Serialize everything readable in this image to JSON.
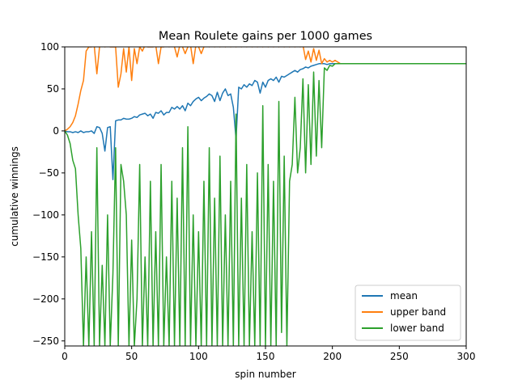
{
  "chart_data": {
    "type": "line",
    "title": "Mean Roulete gains per 1000 games",
    "xlabel": "spin number",
    "ylabel": "cumulative winnings",
    "xlim": [
      0,
      300
    ],
    "ylim": [
      -256,
      100
    ],
    "xticks": [
      "0",
      "50",
      "100",
      "150",
      "200",
      "250",
      "300"
    ],
    "yticks": [
      "100",
      "50",
      "0",
      "−50",
      "−100",
      "−150",
      "−200",
      "−250"
    ],
    "grid": false,
    "legend_position": "lower-right",
    "x": [
      0,
      2,
      4,
      6,
      8,
      10,
      12,
      14,
      16,
      18,
      20,
      22,
      24,
      26,
      28,
      30,
      32,
      34,
      36,
      38,
      40,
      42,
      44,
      46,
      48,
      50,
      52,
      54,
      56,
      58,
      60,
      62,
      64,
      66,
      68,
      70,
      72,
      74,
      76,
      78,
      80,
      82,
      84,
      86,
      88,
      90,
      92,
      94,
      96,
      98,
      100,
      102,
      104,
      106,
      108,
      110,
      112,
      114,
      116,
      118,
      120,
      122,
      124,
      126,
      128,
      130,
      132,
      134,
      136,
      138,
      140,
      142,
      144,
      146,
      148,
      150,
      152,
      154,
      156,
      158,
      160,
      162,
      164,
      166,
      168,
      170,
      172,
      174,
      176,
      178,
      180,
      182,
      184,
      186,
      188,
      190,
      192,
      194,
      196,
      198,
      200,
      202,
      204,
      206,
      208,
      210,
      212,
      214,
      216,
      218,
      220,
      222,
      224,
      226,
      228,
      230,
      232,
      234,
      236,
      238,
      240,
      242,
      244,
      246,
      248,
      250,
      252,
      254,
      256,
      258,
      260,
      262,
      264,
      266,
      268,
      270,
      272,
      274,
      276,
      278,
      280,
      282,
      284,
      286,
      288,
      290,
      292,
      294,
      296,
      298,
      300
    ],
    "series": [
      {
        "name": "mean",
        "color": "#1f77b4",
        "values": [
          0,
          -1,
          -1,
          -2,
          -1,
          -2,
          0,
          -2,
          -1,
          -1,
          0,
          -3,
          5,
          4,
          -3,
          -24,
          4,
          5,
          -58,
          12,
          13,
          13,
          15,
          14,
          14,
          15,
          17,
          16,
          19,
          20,
          21,
          18,
          20,
          15,
          22,
          21,
          24,
          19,
          22,
          22,
          28,
          26,
          29,
          26,
          30,
          24,
          33,
          30,
          35,
          38,
          40,
          36,
          39,
          41,
          44,
          42,
          35,
          46,
          36,
          45,
          50,
          42,
          44,
          28,
          -10,
          52,
          50,
          55,
          52,
          56,
          54,
          60,
          58,
          45,
          58,
          52,
          60,
          62,
          60,
          64,
          58,
          65,
          64,
          66,
          68,
          70,
          72,
          70,
          73,
          74,
          76,
          75,
          77,
          78,
          79,
          80,
          80,
          80,
          79,
          80,
          80,
          80,
          80,
          80,
          80,
          80,
          80,
          80,
          80,
          80,
          80,
          80,
          80,
          80,
          80,
          80,
          80,
          80,
          80,
          80,
          80,
          80,
          80,
          80,
          80,
          80,
          80,
          80,
          80,
          80,
          80,
          80,
          80,
          80,
          80,
          80,
          80,
          80,
          80,
          80,
          80,
          80,
          80,
          80,
          80,
          80,
          80,
          80,
          80,
          80,
          80
        ]
      },
      {
        "name": "upper band",
        "color": "#ff7f0e",
        "values": [
          0,
          2,
          5,
          10,
          18,
          32,
          48,
          60,
          95,
          100,
          100,
          102,
          68,
          100,
          102,
          100,
          101,
          100,
          100,
          100,
          52,
          68,
          98,
          70,
          100,
          60,
          98,
          80,
          100,
          95,
          102,
          100,
          100,
          100,
          102,
          80,
          100,
          100,
          102,
          100,
          102,
          100,
          88,
          102,
          100,
          92,
          100,
          102,
          80,
          102,
          100,
          92,
          100,
          102,
          100,
          102,
          100,
          102,
          100,
          102,
          100,
          102,
          100,
          102,
          100,
          102,
          100,
          102,
          100,
          102,
          100,
          102,
          100,
          102,
          100,
          102,
          100,
          102,
          100,
          102,
          100,
          102,
          100,
          102,
          100,
          102,
          100,
          102,
          100,
          102,
          85,
          95,
          82,
          98,
          84,
          96,
          80,
          86,
          82,
          84,
          82,
          84,
          82,
          80,
          80,
          80,
          80,
          80,
          80,
          80,
          80,
          80,
          80,
          80,
          80,
          80,
          80,
          80,
          80,
          80,
          80,
          80,
          80,
          80,
          80,
          80,
          80,
          80,
          80,
          80,
          80,
          80,
          80,
          80,
          80,
          80,
          80,
          80,
          80,
          80,
          80,
          80,
          80,
          80,
          80,
          80,
          80,
          80,
          80,
          80,
          80
        ]
      },
      {
        "name": "lower band",
        "color": "#2ca02c",
        "values": [
          0,
          -5,
          -15,
          -35,
          -45,
          -100,
          -140,
          -256,
          -150,
          -256,
          -120,
          -256,
          -20,
          -256,
          -160,
          -256,
          -100,
          -256,
          -170,
          -20,
          -256,
          -40,
          -60,
          -100,
          -256,
          -130,
          -256,
          -200,
          -40,
          -256,
          -150,
          -256,
          -60,
          -256,
          -120,
          -256,
          -40,
          -256,
          -150,
          -256,
          -60,
          -256,
          -80,
          -256,
          -20,
          -256,
          5,
          -256,
          -100,
          -256,
          -120,
          -256,
          -60,
          -256,
          -20,
          -256,
          -80,
          -256,
          -30,
          -256,
          -100,
          -256,
          -60,
          -256,
          20,
          -256,
          -80,
          -256,
          -40,
          -256,
          -120,
          -256,
          -50,
          -256,
          30,
          -256,
          -40,
          -256,
          -60,
          -256,
          35,
          -240,
          -30,
          -256,
          -60,
          -40,
          40,
          -50,
          -20,
          62,
          -50,
          55,
          -40,
          70,
          -30,
          60,
          -20,
          75,
          72,
          78,
          77,
          80,
          80,
          80,
          80,
          80,
          80,
          80,
          80,
          80,
          80,
          80,
          80,
          80,
          80,
          80,
          80,
          80,
          80,
          80,
          80,
          80,
          80,
          80,
          80,
          80,
          80,
          80,
          80,
          80,
          80,
          80,
          80,
          80,
          80,
          80,
          80,
          80,
          80,
          80,
          80,
          80,
          80,
          80,
          80,
          80,
          80,
          80,
          80,
          80,
          80
        ]
      }
    ]
  }
}
